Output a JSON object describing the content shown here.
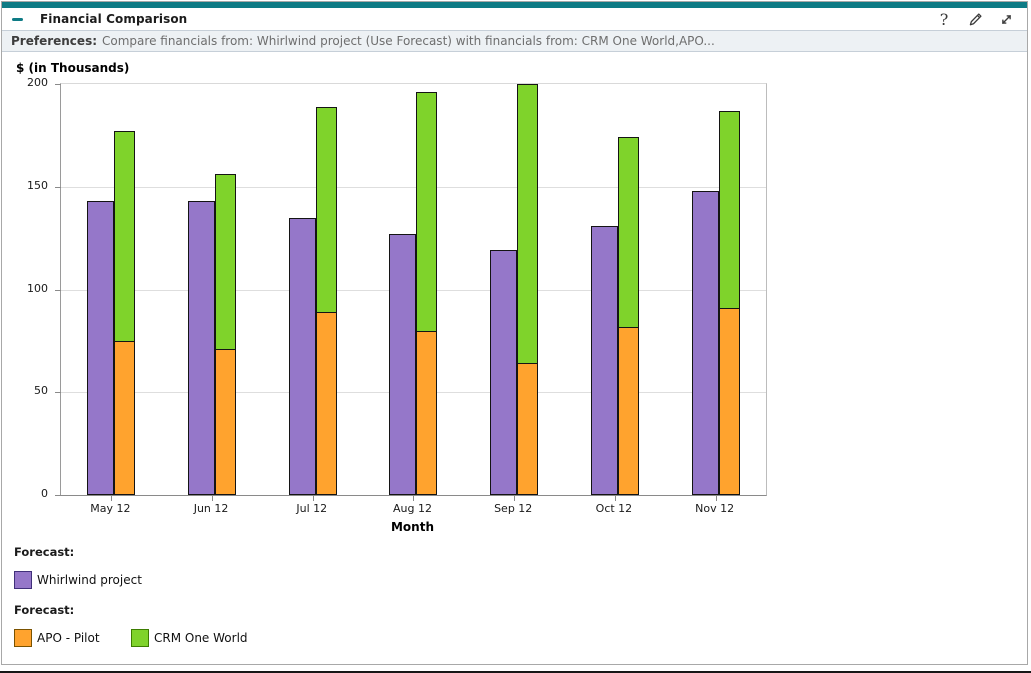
{
  "header": {
    "title": "Financial Comparison",
    "help_label": "?"
  },
  "preferences": {
    "label": "Preferences:",
    "text": "Compare financials from: Whirlwind project (Use Forecast) with financials from: CRM One World,APO..."
  },
  "colors": {
    "accent_teal": "#0E7B85",
    "purple": "#9577C9",
    "orange": "#FFA32E",
    "green": "#7FD32B",
    "gridline": "#dedede",
    "axis": "#8a8a8a"
  },
  "chart_data": {
    "type": "bar",
    "title": "$ (in Thousands)",
    "ylabel": "$ (in Thousands)",
    "xlabel": "Month",
    "ylim": [
      0,
      200
    ],
    "y_ticks": [
      0,
      50,
      100,
      150,
      200
    ],
    "grid": "horizontal",
    "legend_position": "bottom",
    "categories": [
      "May 12",
      "Jun 12",
      "Jul 12",
      "Aug 12",
      "Sep 12",
      "Oct 12",
      "Nov 12"
    ],
    "series": [
      {
        "name": "Whirlwind project",
        "role": "standalone-bar",
        "color": "#9577C9",
        "values": [
          143,
          143,
          135,
          127,
          119,
          131,
          148
        ]
      },
      {
        "name": "APO - Pilot",
        "role": "stack-bottom",
        "color": "#FFA32E",
        "values": [
          75,
          71,
          89,
          80,
          64,
          82,
          91
        ]
      },
      {
        "name": "CRM One World",
        "role": "stack-top",
        "color": "#7FD32B",
        "values": [
          102,
          85,
          100,
          116,
          136,
          92,
          96
        ],
        "stack_totals": [
          177,
          156,
          189,
          196,
          200,
          174,
          187
        ]
      }
    ]
  },
  "legend": {
    "groups": [
      {
        "label": "Forecast:",
        "items": [
          {
            "name": "Whirlwind project",
            "color": "#9577C9",
            "border": "#40307A"
          }
        ]
      },
      {
        "label": "Forecast:",
        "items": [
          {
            "name": "APO - Pilot",
            "color": "#FFA32E",
            "border": "#7A5200"
          },
          {
            "name": "CRM One World",
            "color": "#7FD32B",
            "border": "#3C7D00"
          }
        ]
      }
    ]
  }
}
